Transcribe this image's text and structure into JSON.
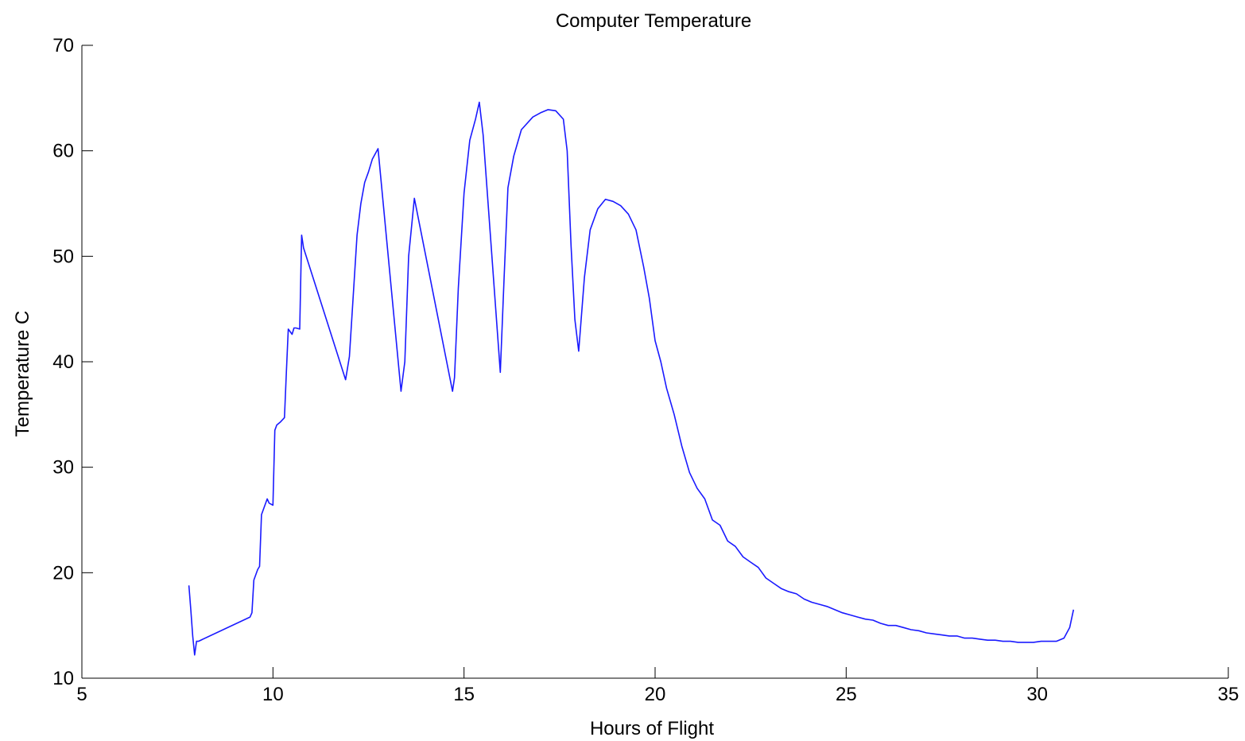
{
  "chart_data": {
    "type": "line",
    "title": "Computer Temperature",
    "xlabel": "Hours of Flight",
    "ylabel": "Temperature C",
    "xlim": [
      5,
      35
    ],
    "ylim": [
      10,
      70
    ],
    "xticks": [
      "5",
      "10",
      "15",
      "20",
      "25",
      "30",
      "35"
    ],
    "yticks": [
      "10",
      "20",
      "30",
      "40",
      "50",
      "60",
      "70"
    ],
    "xtick_values": [
      5,
      10,
      15,
      20,
      25,
      30,
      35
    ],
    "ytick_values": [
      10,
      20,
      30,
      40,
      50,
      60,
      70
    ],
    "grid": false,
    "line_color": "#1a1aff",
    "series": [
      {
        "x": [
          7.8,
          7.85,
          7.9,
          7.95,
          8.0,
          8.05,
          9.4,
          9.45,
          9.5,
          9.6,
          9.65,
          9.7,
          9.8,
          9.85,
          9.9,
          10.0,
          10.05,
          10.1,
          10.2,
          10.3,
          10.35,
          10.4,
          10.5,
          10.55,
          10.6,
          10.7,
          10.75,
          10.8,
          11.9,
          12.0,
          12.2,
          12.3,
          12.4,
          12.5,
          12.6,
          12.75,
          13.35,
          13.45,
          13.55,
          13.7,
          14.7,
          14.75,
          14.85,
          15.0,
          15.15,
          15.3,
          15.4,
          15.5,
          15.95,
          16.05,
          16.15,
          16.3,
          16.5,
          16.8,
          17.0,
          17.2,
          17.4,
          17.6,
          17.7,
          17.8,
          17.9,
          18.0,
          18.15,
          18.3,
          18.5,
          18.7,
          18.9,
          19.1,
          19.3,
          19.5,
          19.7,
          19.85,
          20.0,
          20.15,
          20.3,
          20.5,
          20.7,
          20.9,
          21.1,
          21.3,
          21.5,
          21.7,
          21.9,
          22.1,
          22.3,
          22.5,
          22.7,
          22.9,
          23.1,
          23.3,
          23.5,
          23.7,
          23.9,
          24.1,
          24.3,
          24.5,
          24.7,
          24.9,
          25.1,
          25.3,
          25.5,
          25.7,
          25.9,
          26.1,
          26.3,
          26.5,
          26.7,
          26.9,
          27.1,
          27.3,
          27.5,
          27.7,
          27.9,
          28.1,
          28.3,
          28.5,
          28.7,
          28.9,
          29.1,
          29.3,
          29.5,
          29.7,
          29.9,
          30.1,
          30.3,
          30.5,
          30.7,
          30.85,
          30.95
        ],
        "y": [
          18.8,
          16.5,
          14.0,
          12.2,
          13.5,
          13.5,
          15.8,
          16.2,
          19.3,
          20.3,
          20.6,
          25.5,
          26.5,
          27.0,
          26.6,
          26.4,
          33.5,
          34.0,
          34.3,
          34.7,
          39.0,
          43.1,
          42.6,
          43.2,
          43.2,
          43.1,
          52.0,
          50.8,
          38.3,
          40.5,
          52.0,
          55.0,
          57.0,
          58.0,
          59.2,
          60.2,
          37.2,
          40.0,
          50.0,
          55.5,
          37.2,
          38.5,
          47.0,
          56.0,
          61.0,
          63.0,
          64.6,
          61.5,
          39.0,
          48.0,
          56.5,
          59.5,
          62.0,
          63.2,
          63.6,
          63.9,
          63.8,
          63.0,
          60.0,
          51.0,
          44.0,
          41.0,
          48.0,
          52.5,
          54.5,
          55.4,
          55.2,
          54.8,
          54.0,
          52.5,
          49.0,
          46.0,
          42.0,
          40.0,
          37.5,
          35.0,
          32.0,
          29.5,
          28.0,
          27.0,
          25.0,
          24.5,
          23.0,
          22.5,
          21.5,
          21.0,
          20.5,
          19.5,
          19.0,
          18.5,
          18.2,
          18.0,
          17.5,
          17.2,
          17.0,
          16.8,
          16.5,
          16.2,
          16.0,
          15.8,
          15.6,
          15.5,
          15.2,
          15.0,
          15.0,
          14.8,
          14.6,
          14.5,
          14.3,
          14.2,
          14.1,
          14.0,
          14.0,
          13.8,
          13.8,
          13.7,
          13.6,
          13.6,
          13.5,
          13.5,
          13.4,
          13.4,
          13.4,
          13.5,
          13.5,
          13.5,
          13.8,
          14.8,
          16.5
        ]
      }
    ]
  }
}
